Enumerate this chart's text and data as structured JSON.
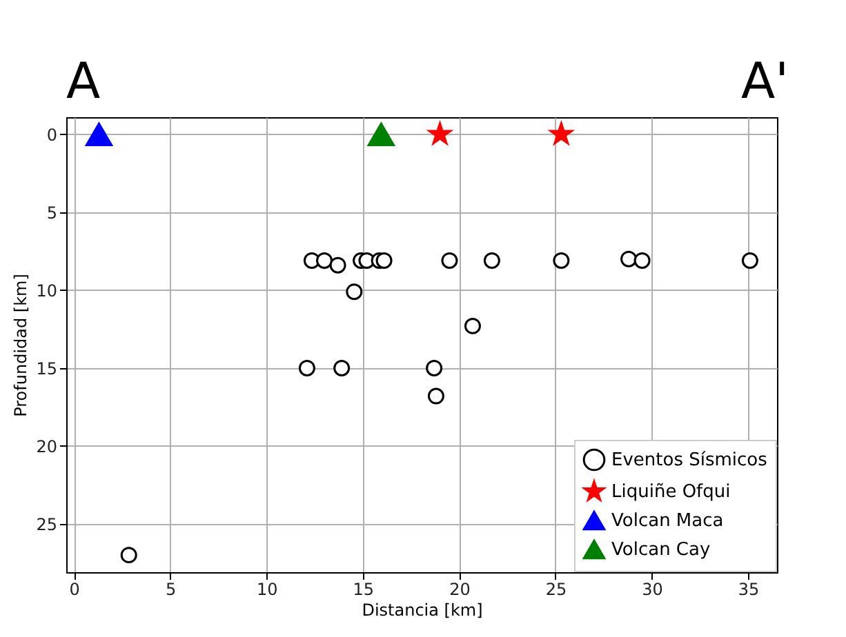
{
  "chart_data": {
    "type": "scatter",
    "xlabel": "Distancia [km]",
    "ylabel": "Profundidad [km]",
    "annotations": [
      "A",
      "A'"
    ],
    "xlim": [
      -0.4,
      36.5
    ],
    "ylim": [
      28.1,
      -1.1
    ],
    "xticks": [
      0,
      5,
      10,
      15,
      20,
      25,
      30,
      35
    ],
    "yticks": [
      0,
      5,
      10,
      15,
      20,
      25
    ],
    "grid": true,
    "legend": "bottom right",
    "series": [
      {
        "name": "Eventos Sísmicos",
        "color": "#000000",
        "marker": "circle",
        "x": [
          12.35,
          13.0,
          13.7,
          14.9,
          15.2,
          15.85,
          16.1,
          19.5,
          21.7,
          25.3,
          28.8,
          29.5,
          35.1,
          14.55,
          20.7,
          12.1,
          13.9,
          18.7,
          18.8,
          2.85
        ],
        "values": [
          8.1,
          8.1,
          8.4,
          8.1,
          8.1,
          8.1,
          8.1,
          8.1,
          8.1,
          8.1,
          8.0,
          8.1,
          8.1,
          10.1,
          12.3,
          15.0,
          15.0,
          15.0,
          16.8,
          27.0
        ]
      },
      {
        "name": "Liquiñe Ofqui",
        "color": "#ff0000",
        "marker": "star",
        "x": [
          19.0,
          25.3
        ],
        "values": [
          0,
          0
        ]
      },
      {
        "name": "Volcan Maca",
        "color": "#0000ff",
        "marker": "triangle",
        "x": [
          1.3
        ],
        "values": [
          0
        ]
      },
      {
        "name": "Volcan Cay",
        "color": "#008000",
        "marker": "triangle",
        "x": [
          15.95
        ],
        "values": [
          0
        ]
      }
    ]
  }
}
